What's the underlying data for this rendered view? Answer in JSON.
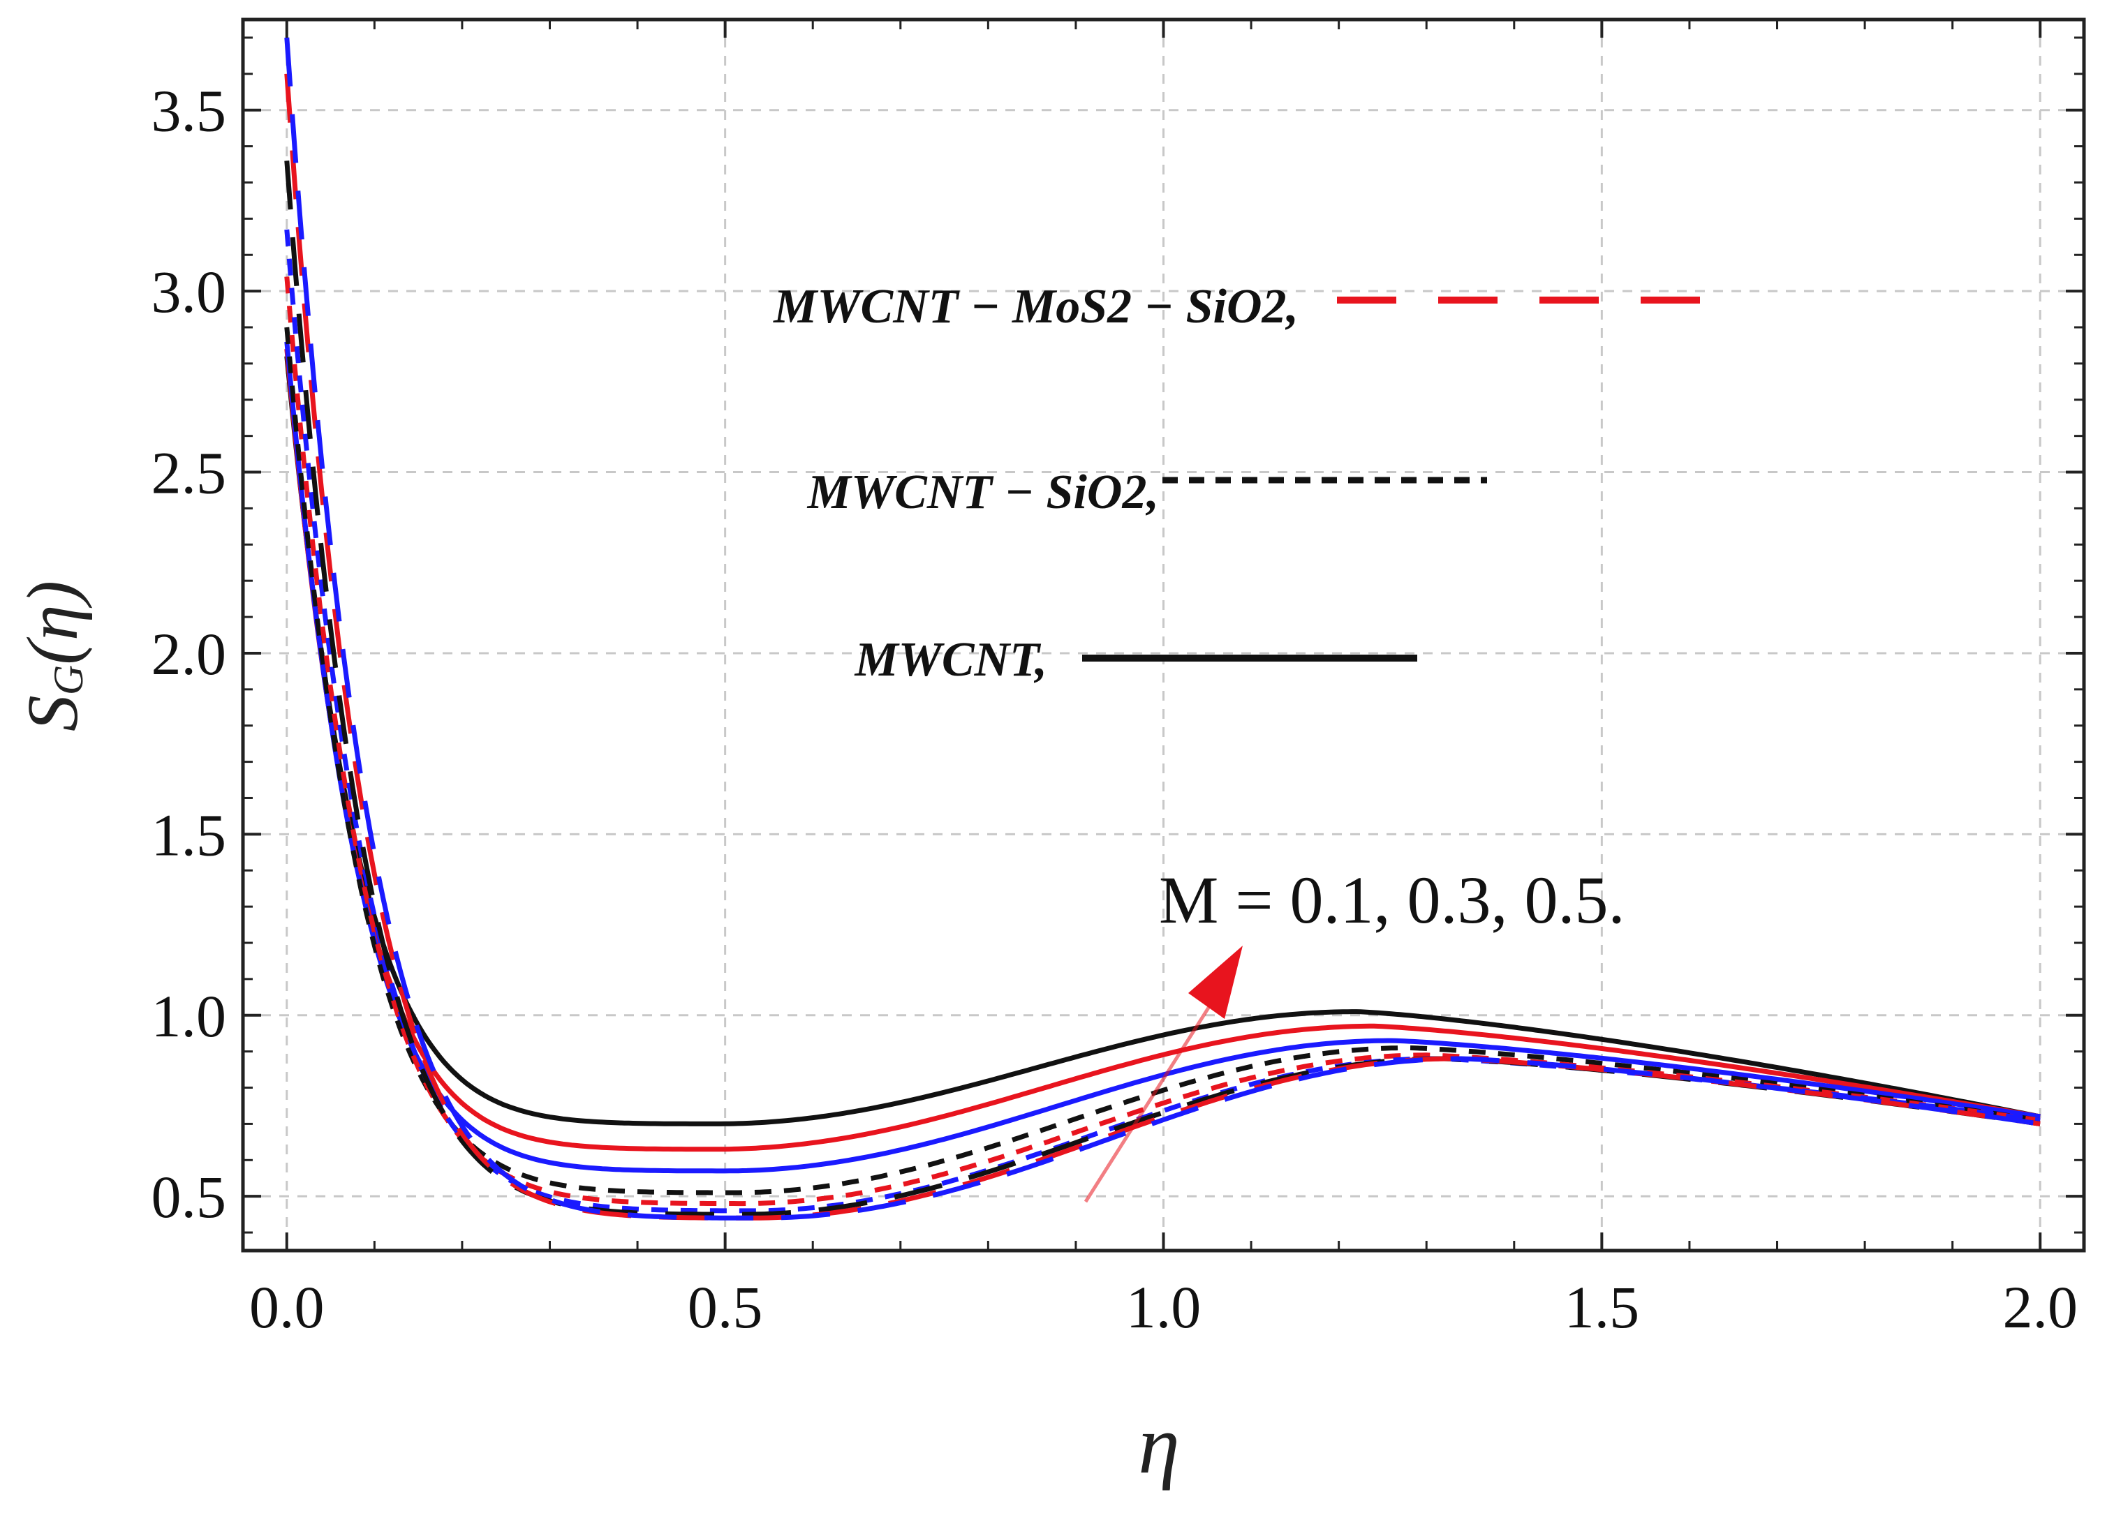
{
  "chart_data": {
    "type": "line",
    "title": "",
    "xlabel": "η",
    "ylabel": "S_G(η)",
    "xlim": [
      -0.05,
      2.05
    ],
    "ylim": [
      0.35,
      3.75
    ],
    "grid": true,
    "x_ticks": [
      "0.0",
      "0.5",
      "1.0",
      "1.5",
      "2.0"
    ],
    "x_tick_values": [
      0.0,
      0.5,
      1.0,
      1.5,
      2.0
    ],
    "y_ticks": [
      "0.5",
      "1.0",
      "1.5",
      "2.0",
      "2.5",
      "3.0",
      "3.5"
    ],
    "y_tick_values": [
      0.5,
      1.0,
      1.5,
      2.0,
      2.5,
      3.0,
      3.5
    ],
    "legend": [
      {
        "label": "MWCNT − MoS2 − SiO2,",
        "color": "#e8141e",
        "style": "long-dash"
      },
      {
        "label": "MWCNT − SiO2,",
        "color": "#111111",
        "style": "short-dash"
      },
      {
        "label": "MWCNT,",
        "color": "#111111",
        "style": "solid"
      }
    ],
    "annotation": {
      "text": "M = 0.1, 0.3, 0.5.",
      "arrow_color": "#e8141e"
    },
    "series": [
      {
        "name": "MWCNT, M=0.1",
        "group": "MWCNT",
        "M": 0.1,
        "color": "#111111",
        "style": "solid",
        "y0": 2.82,
        "ymin": 0.7,
        "xmin": 0.49,
        "ymax": 1.01,
        "xmax": 1.22,
        "yend": 0.72
      },
      {
        "name": "MWCNT, M=0.3",
        "group": "MWCNT",
        "M": 0.3,
        "color": "#e8141e",
        "style": "solid",
        "y0": 2.84,
        "ymin": 0.63,
        "xmin": 0.49,
        "ymax": 0.97,
        "xmax": 1.24,
        "yend": 0.72
      },
      {
        "name": "MWCNT, M=0.5",
        "group": "MWCNT",
        "M": 0.5,
        "color": "#1a1aff",
        "style": "solid",
        "y0": 2.86,
        "ymin": 0.57,
        "xmin": 0.5,
        "ymax": 0.93,
        "xmax": 1.26,
        "yend": 0.72
      },
      {
        "name": "MWCNT − SiO2, M=0.1",
        "group": "MWCNT − SiO2",
        "M": 0.1,
        "color": "#111111",
        "style": "short-dash",
        "y0": 2.9,
        "ymin": 0.51,
        "xmin": 0.51,
        "ymax": 0.91,
        "xmax": 1.28,
        "yend": 0.71
      },
      {
        "name": "MWCNT − SiO2, M=0.3",
        "group": "MWCNT − SiO2",
        "M": 0.3,
        "color": "#e8141e",
        "style": "short-dash",
        "y0": 3.04,
        "ymin": 0.48,
        "xmin": 0.52,
        "ymax": 0.89,
        "xmax": 1.3,
        "yend": 0.71
      },
      {
        "name": "MWCNT − SiO2, M=0.5",
        "group": "MWCNT − SiO2",
        "M": 0.5,
        "color": "#1a1aff",
        "style": "short-dash",
        "y0": 3.17,
        "ymin": 0.46,
        "xmin": 0.53,
        "ymax": 0.88,
        "xmax": 1.31,
        "yend": 0.71
      },
      {
        "name": "MWCNT − MoS2 − SiO2, M=0.1",
        "group": "MWCNT − MoS2 − SiO2",
        "M": 0.1,
        "color": "#111111",
        "style": "long-dash",
        "y0": 3.36,
        "ymin": 0.45,
        "xmin": 0.52,
        "ymax": 0.88,
        "xmax": 1.32,
        "yend": 0.7
      },
      {
        "name": "MWCNT − MoS2 − SiO2, M=0.3",
        "group": "MWCNT − MoS2 − SiO2",
        "M": 0.3,
        "color": "#e8141e",
        "style": "long-dash",
        "y0": 3.6,
        "ymin": 0.44,
        "xmin": 0.53,
        "ymax": 0.88,
        "xmax": 1.33,
        "yend": 0.7
      },
      {
        "name": "MWCNT − MoS2 − SiO2, M=0.5",
        "group": "MWCNT − MoS2 − SiO2",
        "M": 0.5,
        "color": "#1a1aff",
        "style": "long-dash",
        "y0": 3.7,
        "ymin": 0.44,
        "xmin": 0.54,
        "ymax": 0.88,
        "xmax": 1.34,
        "yend": 0.7
      }
    ]
  }
}
